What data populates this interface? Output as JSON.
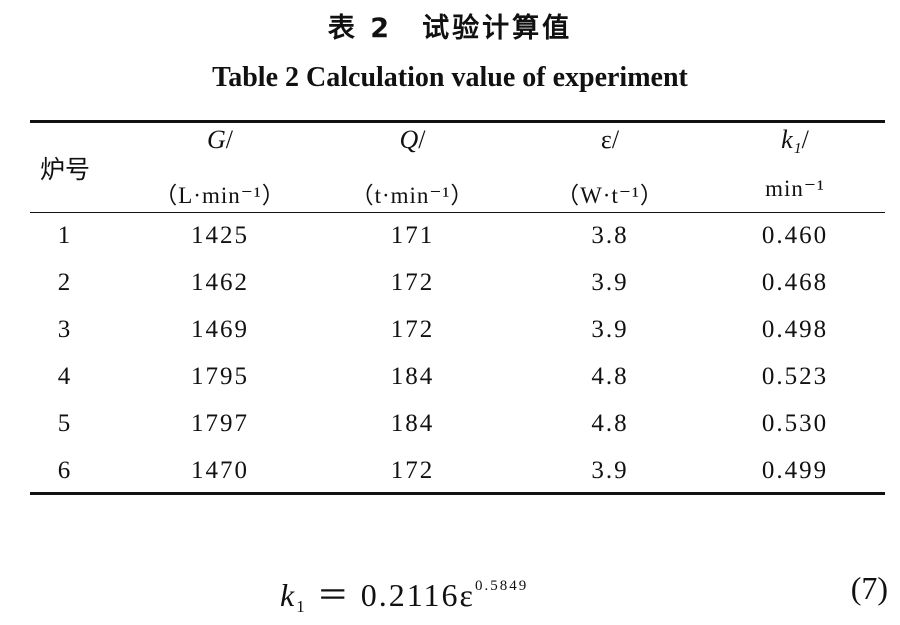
{
  "title_cn": "表 2　试验计算值",
  "title_en": "Table 2   Calculation value of experiment",
  "table": {
    "col0_label": "炉号",
    "headers": [
      {
        "var": "G",
        "slash": "/",
        "unit": "（L·min⁻¹）"
      },
      {
        "var": "Q",
        "slash": "/",
        "unit": "（t·min⁻¹）"
      },
      {
        "var": "ε",
        "slash": "/",
        "unit": "（W·t⁻¹）"
      },
      {
        "var": "k₁",
        "slash": "/",
        "unit": "min⁻¹"
      }
    ],
    "rows": [
      [
        "1",
        "1425",
        "171",
        "3.8",
        "0.460"
      ],
      [
        "2",
        "1462",
        "172",
        "3.9",
        "0.468"
      ],
      [
        "3",
        "1469",
        "172",
        "3.9",
        "0.498"
      ],
      [
        "4",
        "1795",
        "184",
        "4.8",
        "0.523"
      ],
      [
        "5",
        "1797",
        "184",
        "4.8",
        "0.530"
      ],
      [
        "6",
        "1470",
        "172",
        "3.9",
        "0.499"
      ]
    ]
  },
  "formula": {
    "lhs": "k",
    "lhs_sub": "1",
    "rhs": "＝ 0.2116ε",
    "exponent": "0.5849",
    "number": "(7)"
  }
}
